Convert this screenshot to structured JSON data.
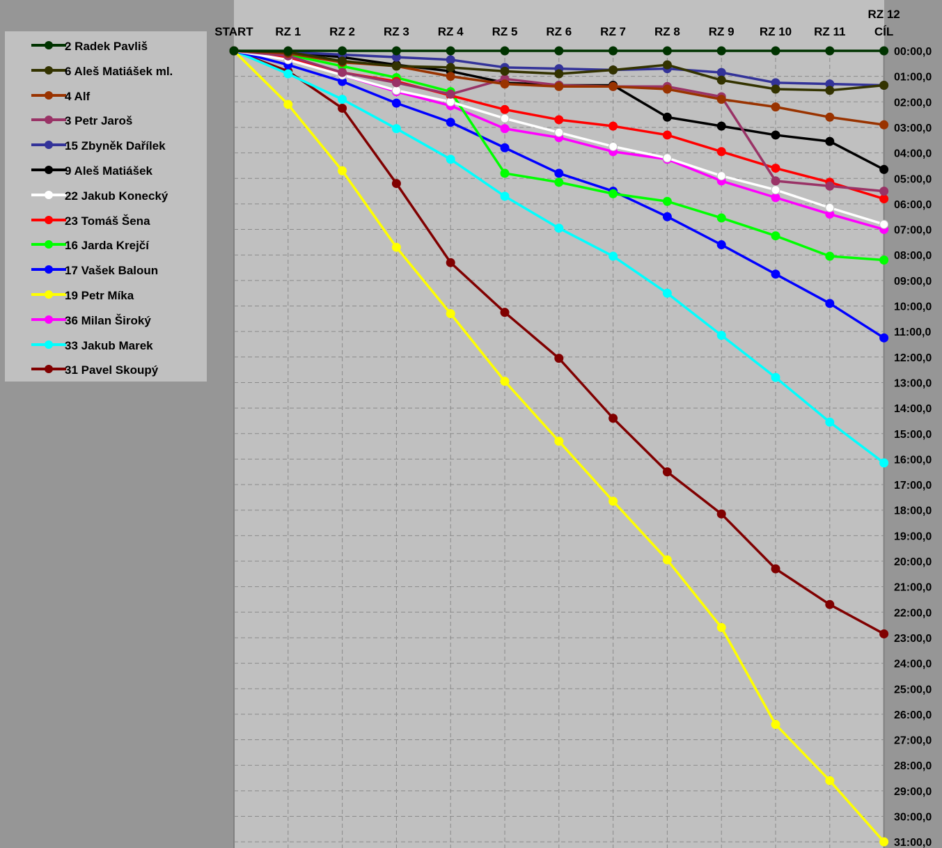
{
  "chart_data": {
    "type": "line",
    "categories": [
      "START",
      "RZ 1",
      "RZ 2",
      "RZ 3",
      "RZ 4",
      "RZ 5",
      "RZ 6",
      "RZ 7",
      "RZ 8",
      "RZ 9",
      "RZ 10",
      "RZ 11",
      "RZ 12 CÍL"
    ],
    "category_lines": [
      [
        "START"
      ],
      [
        "RZ 1"
      ],
      [
        "RZ 2"
      ],
      [
        "RZ 3"
      ],
      [
        "RZ 4"
      ],
      [
        "RZ 5"
      ],
      [
        "RZ 6"
      ],
      [
        "RZ 7"
      ],
      [
        "RZ 8"
      ],
      [
        "RZ 9"
      ],
      [
        "RZ 10"
      ],
      [
        "RZ 11"
      ],
      [
        "RZ 12",
        "CÍL"
      ]
    ],
    "y_unit": "minutes behind leader (mm:ss,d)",
    "ylim": [
      0,
      31
    ],
    "y_reversed": true,
    "y_tick_labels": [
      "00:00,0",
      "01:00,0",
      "02:00,0",
      "03:00,0",
      "04:00,0",
      "05:00,0",
      "06:00,0",
      "07:00,0",
      "08:00,0",
      "09:00,0",
      "10:00,0",
      "11:00,0",
      "12:00,0",
      "13:00,0",
      "14:00,0",
      "15:00,0",
      "16:00,0",
      "17:00,0",
      "18:00,0",
      "19:00,0",
      "20:00,0",
      "21:00,0",
      "22:00,0",
      "23:00,0",
      "24:00,0",
      "25:00,0",
      "26:00,0",
      "27:00,0",
      "28:00,0",
      "29:00,0",
      "30:00,0",
      "31:00,0"
    ],
    "grid": true,
    "legend_position": "top-left",
    "plot_background": "#c0c0c0",
    "series": [
      {
        "name": "2 Radek Pavliš",
        "color": "#003300",
        "values": [
          0,
          0,
          0,
          0,
          0,
          0,
          0,
          0,
          0,
          0,
          0,
          0,
          0
        ]
      },
      {
        "name": "6 Aleš Matiášek ml.",
        "color": "#333300",
        "values": [
          0,
          0.05,
          0.4,
          0.6,
          0.65,
          0.8,
          0.9,
          0.75,
          0.55,
          1.15,
          1.5,
          1.55,
          1.35
        ]
      },
      {
        "name": "4 Alf",
        "color": "#993300",
        "values": [
          0,
          0.1,
          0.45,
          0.6,
          1.0,
          1.3,
          1.4,
          1.4,
          1.5,
          1.9,
          2.2,
          2.6,
          2.9
        ]
      },
      {
        "name": "3 Petr Jaroš",
        "color": "#993366",
        "values": [
          0,
          0.2,
          0.85,
          1.25,
          1.7,
          1.1,
          1.35,
          1.4,
          1.4,
          1.8,
          5.1,
          5.3,
          5.5
        ]
      },
      {
        "name": "15 Zbyněk Dařílek",
        "color": "#333399",
        "values": [
          0,
          0.05,
          0.15,
          0.25,
          0.35,
          0.65,
          0.7,
          0.75,
          0.7,
          0.85,
          1.25,
          1.3,
          1.35
        ]
      },
      {
        "name": "9 Aleš Matiášek",
        "color": "#000000",
        "values": [
          0,
          0.05,
          0.25,
          0.55,
          0.8,
          1.25,
          1.35,
          1.35,
          2.6,
          2.95,
          3.3,
          3.55,
          4.65
        ]
      },
      {
        "name": "22 Jakub Konecký",
        "color": "#ffffff",
        "values": [
          0,
          0.35,
          0.95,
          1.55,
          2.0,
          2.65,
          3.2,
          3.75,
          4.2,
          4.9,
          5.45,
          6.15,
          6.8
        ]
      },
      {
        "name": "23 Tomáš Šena",
        "color": "#ff0000",
        "values": [
          0,
          0.25,
          0.85,
          1.2,
          1.75,
          2.3,
          2.7,
          2.95,
          3.3,
          3.95,
          4.6,
          5.15,
          5.8
        ]
      },
      {
        "name": "16 Jarda Krejčí",
        "color": "#00ff00",
        "values": [
          0,
          0.15,
          0.6,
          1.05,
          1.6,
          4.8,
          5.15,
          5.6,
          5.9,
          6.55,
          7.25,
          8.05,
          8.2
        ]
      },
      {
        "name": "17 Vašek Baloun",
        "color": "#0000ff",
        "values": [
          0,
          0.55,
          1.2,
          2.05,
          2.8,
          3.8,
          4.8,
          5.5,
          6.5,
          7.6,
          8.75,
          9.9,
          11.25
        ]
      },
      {
        "name": "19 Petr Míka",
        "color": "#ffff00",
        "values": [
          0,
          2.1,
          4.7,
          7.7,
          10.3,
          12.95,
          15.3,
          17.65,
          19.95,
          22.6,
          26.4,
          28.6,
          31.0
        ]
      },
      {
        "name": "36 Milan Široký",
        "color": "#ff00ff",
        "values": [
          0,
          0.3,
          0.95,
          1.6,
          2.15,
          3.05,
          3.4,
          3.95,
          4.25,
          5.1,
          5.75,
          6.4,
          7.0
        ]
      },
      {
        "name": "33 Jakub Marek",
        "color": "#00ffff",
        "values": [
          0,
          0.9,
          1.9,
          3.05,
          4.25,
          5.7,
          6.95,
          8.05,
          9.5,
          11.15,
          12.8,
          14.55,
          16.15
        ]
      },
      {
        "name": "31 Pavel Skoupý",
        "color": "#800000",
        "values": [
          0,
          0.8,
          2.25,
          5.2,
          8.3,
          10.25,
          12.05,
          14.4,
          16.5,
          18.15,
          20.3,
          21.7,
          22.85
        ]
      }
    ]
  }
}
